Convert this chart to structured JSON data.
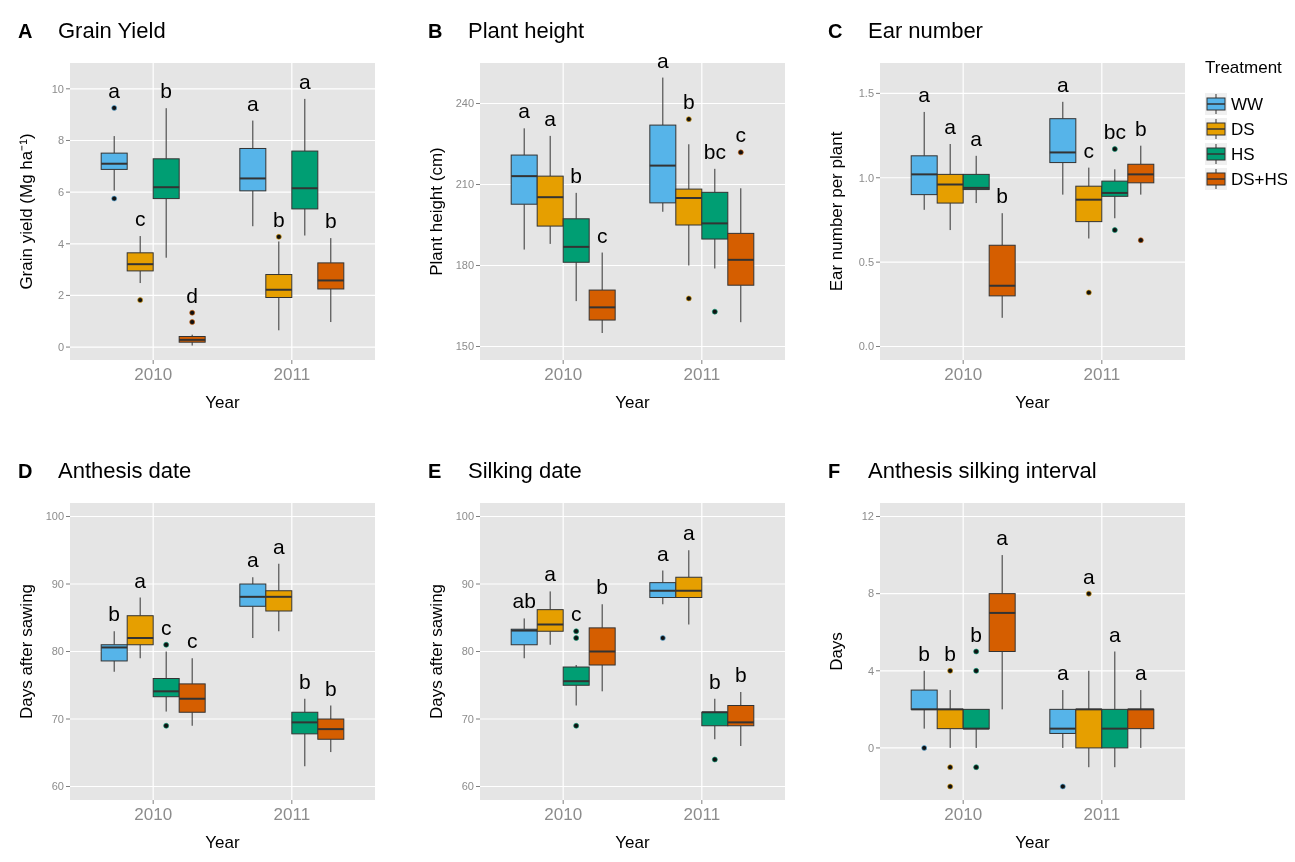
{
  "chart_data": [
    {
      "type": "box",
      "title": "Grain Yield",
      "xlabel": "Year",
      "ylabel": "Grain yield (Mg ha⁻¹)",
      "categories": [
        "2010",
        "2011"
      ],
      "ylim": [
        -0.5,
        11
      ],
      "yticks": [
        0,
        2,
        4,
        6,
        8,
        10
      ],
      "grid": true,
      "legend": false,
      "annotations": [
        "A",
        "a",
        "c",
        "b",
        "d",
        "a",
        "b",
        "a",
        "b"
      ],
      "series": [
        {
          "color": "#56b4e9",
          "boxes": [
            {
              "low": 6.06,
              "q1": 6.88,
              "median": 7.1,
              "q3": 7.51,
              "high": 8.17,
              "outliers": [
                9.26,
                5.75
              ]
            },
            {
              "low": 4.68,
              "q1": 6.05,
              "median": 6.53,
              "q3": 7.69,
              "high": 8.77
            }
          ]
        },
        {
          "color": "#e69f00",
          "boxes": [
            {
              "low": 2.48,
              "q1": 2.95,
              "median": 3.21,
              "q3": 3.65,
              "high": 4.3,
              "outliers": [
                1.82
              ]
            },
            {
              "low": 0.65,
              "q1": 1.92,
              "median": 2.22,
              "q3": 2.81,
              "high": 4.09,
              "outliers": [
                4.27
              ]
            }
          ]
        },
        {
          "color": "#009e73",
          "boxes": [
            {
              "low": 3.46,
              "q1": 5.75,
              "median": 6.19,
              "q3": 7.29,
              "high": 9.25
            },
            {
              "low": 4.32,
              "q1": 5.35,
              "median": 6.15,
              "q3": 7.59,
              "high": 9.61
            }
          ]
        },
        {
          "color": "#d55e00",
          "boxes": [
            {
              "low": 0.06,
              "q1": 0.19,
              "median": 0.28,
              "q3": 0.41,
              "high": 0.48,
              "outliers": [
                1.33,
                0.97
              ]
            },
            {
              "low": 0.97,
              "q1": 2.25,
              "median": 2.58,
              "q3": 3.26,
              "high": 4.22
            }
          ]
        }
      ]
    },
    {
      "type": "box",
      "title": "Plant height",
      "xlabel": "Year",
      "ylabel": "Plant height (cm)",
      "categories": [
        "2010",
        "2011"
      ],
      "ylim": [
        145,
        255
      ],
      "yticks": [
        150,
        180,
        210,
        240
      ],
      "grid": true,
      "legend": false,
      "annotations": [
        "B",
        "a",
        "a",
        "b",
        "c",
        "a",
        "b",
        "bc",
        "c"
      ],
      "series": [
        {
          "color": "#56b4e9",
          "boxes": [
            {
              "low": 185.9,
              "q1": 202.7,
              "median": 213.1,
              "q3": 220.9,
              "high": 230.8
            },
            {
              "low": 199.9,
              "q1": 203.2,
              "median": 217,
              "q3": 232,
              "high": 249.6
            }
          ]
        },
        {
          "color": "#e69f00",
          "boxes": [
            {
              "low": 188,
              "q1": 194.6,
              "median": 205.3,
              "q3": 213.1,
              "high": 228
            },
            {
              "low": 180,
              "q1": 195,
              "median": 205,
              "q3": 208.3,
              "high": 224.9,
              "outliers": [
                167.8,
                234.2
              ]
            }
          ]
        },
        {
          "color": "#009e73",
          "boxes": [
            {
              "low": 166.8,
              "q1": 181.2,
              "median": 186.9,
              "q3": 197.3,
              "high": 206.9
            },
            {
              "low": 178.9,
              "q1": 189.8,
              "median": 195.6,
              "q3": 207.1,
              "high": 215.8,
              "outliers": [
                162.9
              ]
            }
          ]
        },
        {
          "color": "#d55e00",
          "boxes": [
            {
              "low": 155,
              "q1": 159.8,
              "median": 164.5,
              "q3": 170.9,
              "high": 184.8
            },
            {
              "low": 159,
              "q1": 172.7,
              "median": 182.1,
              "q3": 191.9,
              "high": 208.6,
              "outliers": [
                221.9
              ]
            }
          ]
        }
      ]
    },
    {
      "type": "box",
      "title": "Ear number",
      "xlabel": "Year",
      "ylabel": "Ear number per plant",
      "categories": [
        "2010",
        "2011"
      ],
      "ylim": [
        -0.08,
        1.68
      ],
      "yticks": [
        {
          "value": 0,
          "label": "0.0"
        },
        {
          "value": 0.5,
          "label": "0.5"
        },
        {
          "value": 1,
          "label": "1.0"
        },
        {
          "value": 1.5,
          "label": "1.5"
        }
      ],
      "grid": true,
      "legend": "right",
      "legend_title": "Treatment",
      "annotations": [
        "C",
        "a",
        "a",
        "a",
        "b",
        "a",
        "c",
        "bc",
        "b"
      ],
      "series": [
        {
          "name": "WW",
          "color": "#56b4e9",
          "boxes": [
            {
              "low": 0.81,
              "q1": 0.9,
              "median": 1.02,
              "q3": 1.13,
              "high": 1.39
            },
            {
              "low": 0.9,
              "q1": 1.09,
              "median": 1.15,
              "q3": 1.35,
              "high": 1.45
            }
          ]
        },
        {
          "name": "DS",
          "color": "#e69f00",
          "boxes": [
            {
              "low": 0.69,
              "q1": 0.85,
              "median": 0.96,
              "q3": 1.02,
              "high": 1.2
            },
            {
              "low": 0.64,
              "q1": 0.74,
              "median": 0.87,
              "q3": 0.95,
              "high": 1.06,
              "outliers": [
                0.32
              ]
            }
          ]
        },
        {
          "name": "HS",
          "color": "#009e73",
          "boxes": [
            {
              "low": 0.85,
              "q1": 0.93,
              "median": 0.94,
              "q3": 1.02,
              "high": 1.13
            },
            {
              "low": 0.76,
              "q1": 0.89,
              "median": 0.91,
              "q3": 0.98,
              "high": 1.05,
              "outliers": [
                1.17,
                0.69
              ]
            }
          ]
        },
        {
          "name": "DS+HS",
          "color": "#d55e00",
          "boxes": [
            {
              "low": 0.17,
              "q1": 0.3,
              "median": 0.36,
              "q3": 0.6,
              "high": 0.79
            },
            {
              "low": 0.9,
              "q1": 0.97,
              "median": 1.02,
              "q3": 1.08,
              "high": 1.19,
              "outliers": [
                0.63
              ]
            }
          ]
        }
      ]
    },
    {
      "type": "box",
      "title": "Anthesis date",
      "xlabel": "Year",
      "ylabel": "Days after sawing",
      "categories": [
        "2010",
        "2011"
      ],
      "ylim": [
        58,
        102
      ],
      "yticks": [
        60,
        70,
        80,
        90,
        100
      ],
      "grid": true,
      "legend": false,
      "annotations": [
        "D",
        "b",
        "a",
        "c",
        "c",
        "a",
        "a",
        "b",
        "b"
      ],
      "series": [
        {
          "color": "#56b4e9",
          "boxes": [
            {
              "low": 77,
              "q1": 78.6,
              "median": 80.6,
              "q3": 81,
              "high": 83
            },
            {
              "low": 82,
              "q1": 86.7,
              "median": 88.1,
              "q3": 90,
              "high": 91
            }
          ]
        },
        {
          "color": "#e69f00",
          "boxes": [
            {
              "low": 79,
              "q1": 81,
              "median": 82,
              "q3": 85.3,
              "high": 88
            },
            {
              "low": 83,
              "q1": 86,
              "median": 88.1,
              "q3": 89,
              "high": 93
            }
          ]
        },
        {
          "color": "#009e73",
          "boxes": [
            {
              "low": 71.1,
              "q1": 73.3,
              "median": 74.1,
              "q3": 76,
              "high": 80,
              "outliers": [
                81,
                69
              ]
            },
            {
              "low": 63,
              "q1": 67.8,
              "median": 69.5,
              "q3": 71,
              "high": 73
            }
          ]
        },
        {
          "color": "#d55e00",
          "boxes": [
            {
              "low": 69,
              "q1": 71,
              "median": 73,
              "q3": 75.2,
              "high": 79
            },
            {
              "low": 65.1,
              "q1": 67,
              "median": 68.5,
              "q3": 70,
              "high": 72
            }
          ]
        }
      ]
    },
    {
      "type": "box",
      "title": "Silking date",
      "xlabel": "Year",
      "ylabel": "Days after sawing",
      "categories": [
        "2010",
        "2011"
      ],
      "ylim": [
        58,
        102
      ],
      "yticks": [
        60,
        70,
        80,
        90,
        100
      ],
      "grid": true,
      "legend": false,
      "annotations": [
        "E",
        "ab",
        "a",
        "c",
        "b",
        "a",
        "a",
        "b",
        "b"
      ],
      "series": [
        {
          "color": "#56b4e9",
          "boxes": [
            {
              "low": 79,
              "q1": 81,
              "median": 83.1,
              "q3": 83.3,
              "high": 84.9
            },
            {
              "low": 87,
              "q1": 88,
              "median": 89,
              "q3": 90.2,
              "high": 92,
              "outliers": [
                82
              ]
            }
          ]
        },
        {
          "color": "#e69f00",
          "boxes": [
            {
              "low": 81,
              "q1": 83,
              "median": 84,
              "q3": 86.2,
              "high": 88.9
            },
            {
              "low": 84,
              "q1": 88,
              "median": 89,
              "q3": 91,
              "high": 95
            }
          ]
        },
        {
          "color": "#009e73",
          "boxes": [
            {
              "low": 72,
              "q1": 75,
              "median": 75.6,
              "q3": 77.7,
              "high": 78,
              "outliers": [
                83,
                82,
                69
              ]
            },
            {
              "low": 67,
              "q1": 69,
              "median": 71,
              "q3": 71,
              "high": 73,
              "outliers": [
                64
              ]
            }
          ]
        },
        {
          "color": "#d55e00",
          "boxes": [
            {
              "low": 74.1,
              "q1": 78,
              "median": 80,
              "q3": 83.5,
              "high": 87
            },
            {
              "low": 66,
              "q1": 69,
              "median": 69.5,
              "q3": 72,
              "high": 74
            }
          ]
        }
      ]
    },
    {
      "type": "box",
      "title": "Anthesis silking interval",
      "xlabel": "Year",
      "ylabel": "Days",
      "categories": [
        "2010",
        "2011"
      ],
      "ylim": [
        -2.7,
        12.7
      ],
      "yticks": [
        0,
        4,
        8,
        12
      ],
      "grid": true,
      "legend": false,
      "annotations": [
        "F",
        "b",
        "b",
        "b",
        "a",
        "a",
        "a",
        "a",
        "a"
      ],
      "series": [
        {
          "color": "#56b4e9",
          "boxes": [
            {
              "low": 1,
              "q1": 2,
              "median": 2,
              "q3": 3,
              "high": 4,
              "outliers": [
                0
              ]
            },
            {
              "low": 0,
              "q1": 0.75,
              "median": 1,
              "q3": 2,
              "high": 3,
              "outliers": [
                -2
              ]
            }
          ]
        },
        {
          "color": "#e69f00",
          "boxes": [
            {
              "low": 0,
              "q1": 1,
              "median": 2,
              "q3": 2,
              "high": 3,
              "outliers": [
                4,
                -1,
                -2
              ]
            },
            {
              "low": -1,
              "q1": 0,
              "median": 2,
              "q3": 2,
              "high": 4,
              "outliers": [
                8
              ]
            }
          ]
        },
        {
          "color": "#009e73",
          "boxes": [
            {
              "low": 0,
              "q1": 1,
              "median": 1,
              "q3": 2,
              "high": 2,
              "outliers": [
                5,
                4,
                -1
              ]
            },
            {
              "low": -1,
              "q1": 0,
              "median": 1,
              "q3": 2,
              "high": 5
            }
          ]
        },
        {
          "color": "#d55e00",
          "boxes": [
            {
              "low": 2,
              "q1": 5,
              "median": 7,
              "q3": 8,
              "high": 10
            },
            {
              "low": 0,
              "q1": 1,
              "median": 2,
              "q3": 2,
              "high": 3
            }
          ]
        }
      ]
    }
  ]
}
